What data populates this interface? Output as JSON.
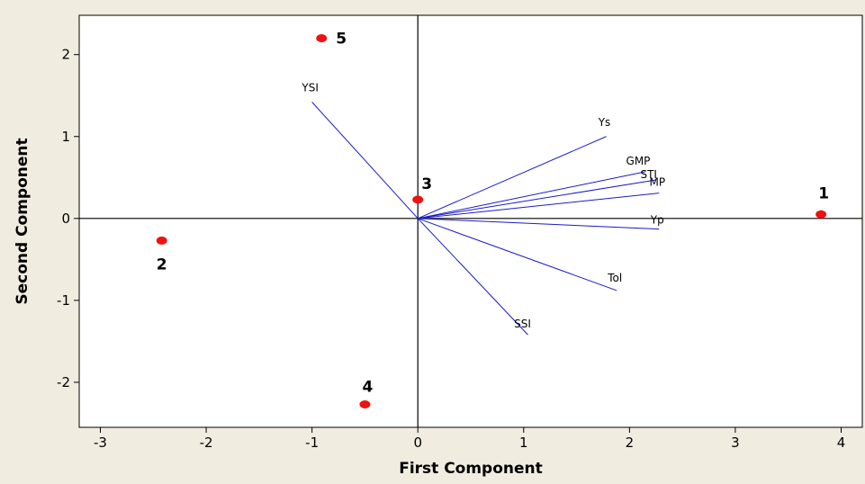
{
  "chart_data": {
    "type": "scatter",
    "title": "",
    "xlabel": "First Component",
    "ylabel": "Second Component",
    "xlim": [
      -3.2,
      4.2
    ],
    "ylim": [
      -2.55,
      2.48
    ],
    "xticks": [
      -3,
      -2,
      -1,
      0,
      1,
      2,
      3,
      4
    ],
    "yticks": [
      -2,
      -1,
      0,
      1,
      2
    ],
    "grid": false,
    "reference_lines": {
      "x": 0,
      "y": 0
    },
    "points": [
      {
        "label": "1",
        "x": 3.81,
        "y": 0.05
      },
      {
        "label": "2",
        "x": -2.42,
        "y": -0.27
      },
      {
        "label": "3",
        "x": 0.0,
        "y": 0.23
      },
      {
        "label": "4",
        "x": -0.5,
        "y": -2.27
      },
      {
        "label": "5",
        "x": -0.91,
        "y": 2.2
      }
    ],
    "vectors": [
      {
        "label": "YSI",
        "x": -1.0,
        "y": 1.42
      },
      {
        "label": "Ys",
        "x": 1.78,
        "y": 1.0
      },
      {
        "label": "GMP",
        "x": 2.15,
        "y": 0.57
      },
      {
        "label": "STI",
        "x": 2.25,
        "y": 0.47
      },
      {
        "label": "MP",
        "x": 2.28,
        "y": 0.31
      },
      {
        "label": "Yp",
        "x": 2.28,
        "y": -0.13
      },
      {
        "label": "Tol",
        "x": 1.88,
        "y": -0.88
      },
      {
        "label": "SSI",
        "x": 1.04,
        "y": -1.42
      }
    ],
    "colors": {
      "points": "#ee1111",
      "vectors": "#1a1acc",
      "axes": "#000000",
      "background": "#f0ece0",
      "plot_area": "#ffffff"
    }
  }
}
